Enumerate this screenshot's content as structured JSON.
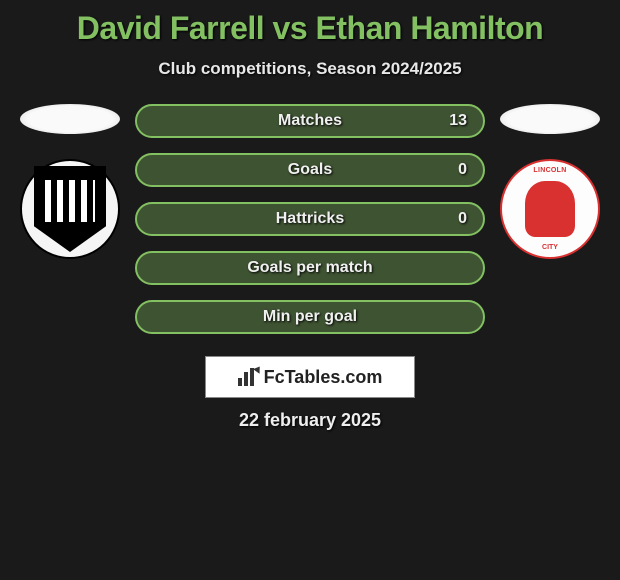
{
  "title": "David Farrell vs Ethan Hamilton",
  "subtitle": "Club competitions, Season 2024/2025",
  "stats": [
    {
      "label": "Matches",
      "rightValue": "13"
    },
    {
      "label": "Goals",
      "rightValue": "0"
    },
    {
      "label": "Hattricks",
      "rightValue": "0"
    },
    {
      "label": "Goals per match",
      "rightValue": ""
    },
    {
      "label": "Min per goal",
      "rightValue": ""
    }
  ],
  "brand": "FcTables.com",
  "date": "22 february 2025",
  "colors": {
    "accent": "#83c062",
    "background": "#1a1a1a",
    "text": "#ffffff",
    "badgeRightAccent": "#d93030"
  },
  "leftClub": {
    "name": "club-shield-black"
  },
  "rightClub": {
    "name": "lincoln-city-imp",
    "topText": "LINCOLN",
    "botText": "CITY"
  }
}
